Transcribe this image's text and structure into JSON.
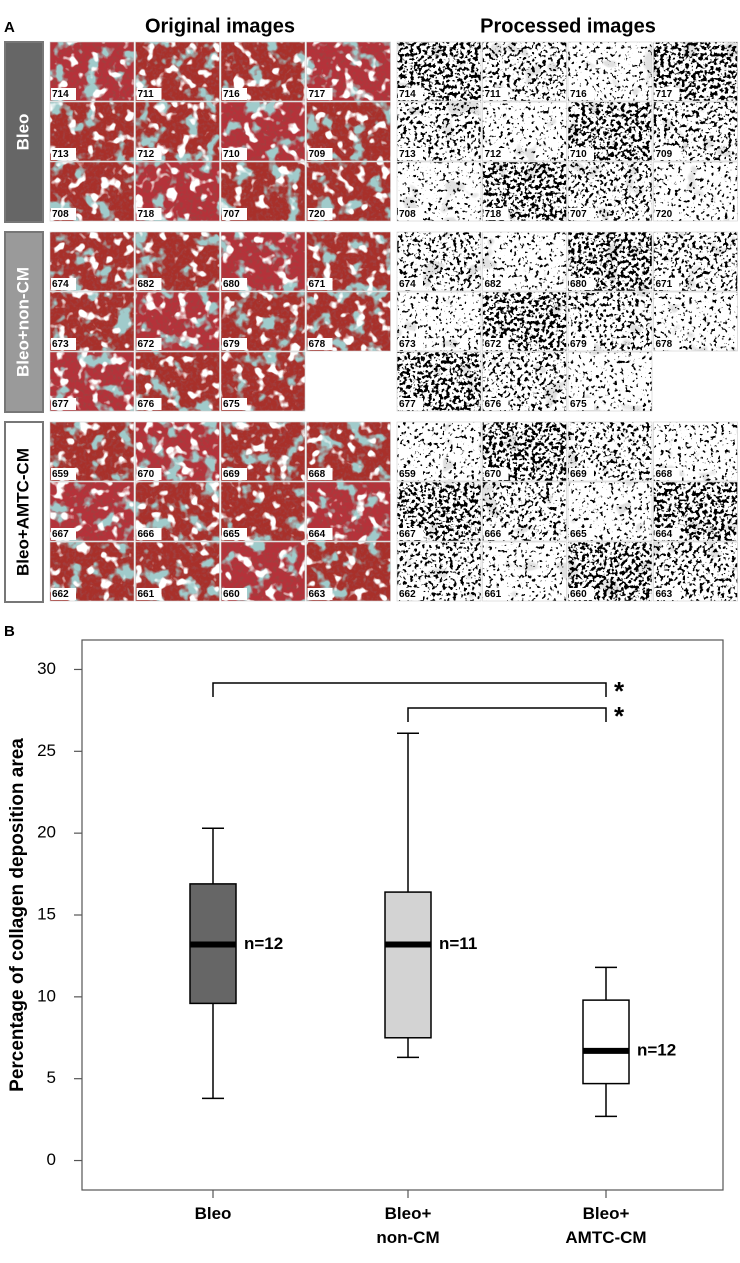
{
  "panel_a": {
    "label": "A",
    "original_title": "Original images",
    "processed_title": "Processed images",
    "groups": [
      {
        "label": "Bleo",
        "images": [
          "714",
          "711",
          "716",
          "717",
          "713",
          "712",
          "710",
          "709",
          "708",
          "718",
          "707",
          "720"
        ]
      },
      {
        "label": "Bleo+non-CM",
        "images": [
          "674",
          "682",
          "680",
          "671",
          "673",
          "672",
          "679",
          "678",
          "677",
          "676",
          "675"
        ]
      },
      {
        "label": "Bleo+AMTC-CM",
        "images": [
          "659",
          "670",
          "669",
          "668",
          "667",
          "666",
          "665",
          "664",
          "662",
          "661",
          "660",
          "663"
        ]
      }
    ]
  },
  "chart_data": {
    "type": "box",
    "panel_label": "B",
    "y_label": "Percentage of collagen deposition area",
    "categories": [
      "Bleo",
      "Bleo+\nnon-CM",
      "Bleo+\nAMTC-CM"
    ],
    "boxes": [
      {
        "whislo": 3.8,
        "q1": 9.6,
        "med": 13.2,
        "q3": 16.9,
        "whishi": 20.3,
        "color": "#666666",
        "n_label": "n=12"
      },
      {
        "whislo": 6.3,
        "q1": 7.5,
        "med": 13.2,
        "q3": 16.4,
        "whishi": 26.1,
        "color": "#d3d3d3",
        "n_label": "n=11"
      },
      {
        "whislo": 2.7,
        "q1": 4.7,
        "med": 6.7,
        "q3": 9.8,
        "whishi": 11.8,
        "color": "#ffffff",
        "n_label": "n=12"
      }
    ],
    "significance": [
      {
        "from": 0,
        "to": 2,
        "label": "*"
      },
      {
        "from": 1,
        "to": 2,
        "label": "*"
      }
    ],
    "ylim": [
      -1.8,
      31.8
    ],
    "yticks": [
      0,
      5,
      10,
      15,
      20,
      25,
      30
    ]
  }
}
